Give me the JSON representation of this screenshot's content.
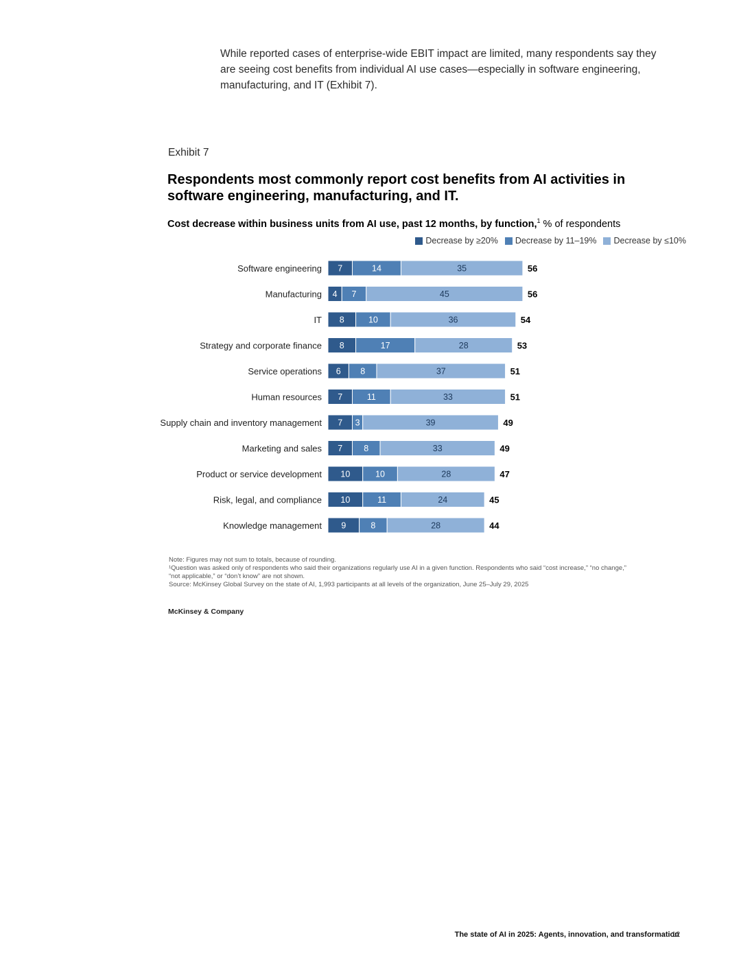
{
  "intro_text": "While reported cases of enterprise-wide EBIT impact are limited, many respondents say they are seeing cost benefits from individual AI use cases—especially in software engineering, manufacturing, and IT (Exhibit 7).",
  "exhibit": {
    "label": "Exhibit 7",
    "title": "Respondents most commonly report cost benefits from AI activities in software engineering, manufacturing, and IT.",
    "subtitle_bold": "Cost decrease within business units from AI use, past 12 months, by function,",
    "subtitle_sup": "1",
    "subtitle_rest": " % of respondents"
  },
  "chart_data": {
    "type": "bar",
    "orientation": "horizontal",
    "stacked": true,
    "categories": [
      "Software engineering",
      "Manufacturing",
      "IT",
      "Strategy and corporate finance",
      "Service operations",
      "Human resources",
      "Supply chain and inventory management",
      "Marketing and sales",
      "Product or service development",
      "Risk, legal, and compliance",
      "Knowledge management"
    ],
    "series": [
      {
        "name": "Decrease by ≥20%",
        "color": "#2f5a8c",
        "values": [
          7,
          4,
          8,
          8,
          6,
          7,
          7,
          7,
          10,
          10,
          9
        ]
      },
      {
        "name": "Decrease by 11–19%",
        "color": "#4f80b5",
        "values": [
          14,
          7,
          10,
          17,
          8,
          11,
          3,
          8,
          10,
          11,
          8
        ]
      },
      {
        "name": "Decrease by ≤10%",
        "color": "#8fb1d8",
        "values": [
          35,
          45,
          36,
          28,
          37,
          33,
          39,
          33,
          28,
          24,
          28
        ]
      }
    ],
    "totals": [
      56,
      56,
      54,
      53,
      51,
      51,
      49,
      49,
      47,
      45,
      44
    ],
    "legend_position": "top-right",
    "grid": false
  },
  "notes": {
    "note": "Note: Figures may not sum to totals, because of rounding.",
    "footnote_1": "¹Question was asked only of respondents who said their organizations regularly use AI in a given function. Respondents who said “cost increase,” “no change,”",
    "footnote_2": "“not applicable,” or “don’t know” are not shown.",
    "source": "Source: McKinsey Global Survey on the state of AI, 1,993 participants at all levels of the organization, June 25–July 29, 2025"
  },
  "brand": "McKinsey & Company",
  "footer": {
    "title": "The state of AI in 2025: Agents, innovation, and transformation",
    "page": "12"
  }
}
